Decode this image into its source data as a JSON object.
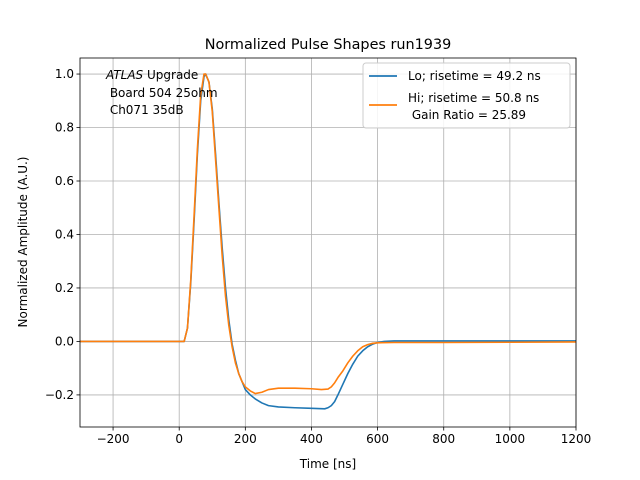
{
  "chart_data": {
    "type": "line",
    "title": "Normalized Pulse Shapes run1939",
    "xlabel": "Time [ns]",
    "ylabel": "Normalized Amplitude (A.U.)",
    "xlim": [
      -300,
      1200
    ],
    "ylim": [
      -0.32,
      1.06
    ],
    "xticks": [
      -200,
      0,
      200,
      400,
      600,
      800,
      1000,
      1200
    ],
    "xtick_labels": [
      "−200",
      "0",
      "200",
      "400",
      "600",
      "800",
      "1000",
      "1200"
    ],
    "yticks": [
      -0.2,
      0.0,
      0.2,
      0.4,
      0.6,
      0.8,
      1.0
    ],
    "ytick_labels": [
      "−0.2",
      "0.0",
      "0.2",
      "0.4",
      "0.6",
      "0.8",
      "1.0"
    ],
    "grid": true,
    "legend_position": "top-right",
    "annotation": {
      "italic": "ATLAS",
      "line1_rest": " Upgrade",
      "line2": " Board 504 25ohm",
      "line3": " Ch071 35dB"
    },
    "series": [
      {
        "name": "Lo; risetime = 49.2 ns",
        "color": "#1f77b4",
        "points": [
          [
            -300,
            0.0
          ],
          [
            0,
            0.0
          ],
          [
            15,
            0.0
          ],
          [
            25,
            0.05
          ],
          [
            35,
            0.22
          ],
          [
            45,
            0.45
          ],
          [
            55,
            0.7
          ],
          [
            65,
            0.9
          ],
          [
            75,
            0.99
          ],
          [
            80,
            1.0
          ],
          [
            90,
            0.97
          ],
          [
            100,
            0.87
          ],
          [
            110,
            0.7
          ],
          [
            120,
            0.52
          ],
          [
            130,
            0.35
          ],
          [
            140,
            0.2
          ],
          [
            150,
            0.08
          ],
          [
            160,
            -0.01
          ],
          [
            170,
            -0.07
          ],
          [
            180,
            -0.12
          ],
          [
            190,
            -0.15
          ],
          [
            200,
            -0.18
          ],
          [
            215,
            -0.2
          ],
          [
            230,
            -0.215
          ],
          [
            250,
            -0.23
          ],
          [
            270,
            -0.24
          ],
          [
            300,
            -0.245
          ],
          [
            350,
            -0.248
          ],
          [
            400,
            -0.25
          ],
          [
            440,
            -0.252
          ],
          [
            450,
            -0.248
          ],
          [
            460,
            -0.24
          ],
          [
            470,
            -0.225
          ],
          [
            480,
            -0.2
          ],
          [
            495,
            -0.16
          ],
          [
            510,
            -0.12
          ],
          [
            525,
            -0.085
          ],
          [
            540,
            -0.055
          ],
          [
            555,
            -0.035
          ],
          [
            570,
            -0.02
          ],
          [
            585,
            -0.01
          ],
          [
            600,
            -0.004
          ],
          [
            620,
            0.0
          ],
          [
            650,
            0.002
          ],
          [
            800,
            0.002
          ],
          [
            1000,
            0.002
          ],
          [
            1200,
            0.002
          ]
        ]
      },
      {
        "name": "Hi; risetime = 50.8 ns\n Gain Ratio = 25.89",
        "color": "#ff7f0e",
        "points": [
          [
            -300,
            0.0
          ],
          [
            0,
            0.0
          ],
          [
            15,
            0.0
          ],
          [
            25,
            0.05
          ],
          [
            35,
            0.23
          ],
          [
            45,
            0.47
          ],
          [
            55,
            0.72
          ],
          [
            65,
            0.92
          ],
          [
            75,
            1.0
          ],
          [
            80,
            1.0
          ],
          [
            90,
            0.97
          ],
          [
            100,
            0.86
          ],
          [
            110,
            0.68
          ],
          [
            120,
            0.5
          ],
          [
            130,
            0.32
          ],
          [
            140,
            0.17
          ],
          [
            150,
            0.06
          ],
          [
            160,
            -0.02
          ],
          [
            170,
            -0.08
          ],
          [
            180,
            -0.12
          ],
          [
            190,
            -0.15
          ],
          [
            200,
            -0.17
          ],
          [
            215,
            -0.185
          ],
          [
            230,
            -0.195
          ],
          [
            250,
            -0.19
          ],
          [
            270,
            -0.18
          ],
          [
            300,
            -0.175
          ],
          [
            350,
            -0.175
          ],
          [
            400,
            -0.177
          ],
          [
            430,
            -0.18
          ],
          [
            450,
            -0.178
          ],
          [
            460,
            -0.17
          ],
          [
            470,
            -0.155
          ],
          [
            480,
            -0.135
          ],
          [
            495,
            -0.11
          ],
          [
            510,
            -0.08
          ],
          [
            525,
            -0.055
          ],
          [
            540,
            -0.035
          ],
          [
            555,
            -0.02
          ],
          [
            570,
            -0.012
          ],
          [
            585,
            -0.007
          ],
          [
            600,
            -0.005
          ],
          [
            650,
            -0.004
          ],
          [
            800,
            -0.004
          ],
          [
            1000,
            -0.003
          ],
          [
            1200,
            -0.002
          ]
        ]
      }
    ],
    "legend": {
      "line1": "Lo; risetime = 49.2 ns",
      "line2a": "Hi; risetime = 50.8 ns",
      "line2b": " Gain Ratio = 25.89"
    }
  }
}
